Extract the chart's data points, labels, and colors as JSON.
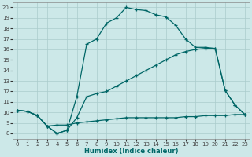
{
  "xlabel": "Humidex (Indice chaleur)",
  "xlim": [
    -0.5,
    23.5
  ],
  "ylim": [
    7.5,
    20.5
  ],
  "xticks": [
    0,
    1,
    2,
    3,
    4,
    5,
    6,
    7,
    8,
    9,
    10,
    11,
    12,
    13,
    14,
    15,
    16,
    17,
    18,
    19,
    20,
    21,
    22,
    23
  ],
  "yticks": [
    8,
    9,
    10,
    11,
    12,
    13,
    14,
    15,
    16,
    17,
    18,
    19,
    20
  ],
  "bg_color": "#cce8e8",
  "grid_color": "#aacccc",
  "line_color": "#006666",
  "line1_x": [
    0,
    1,
    2,
    3,
    4,
    5,
    6,
    7,
    8,
    9,
    10,
    11,
    12,
    13,
    14,
    15,
    16,
    17,
    18,
    19,
    20,
    21,
    22,
    23
  ],
  "line1_y": [
    10.2,
    10.1,
    9.7,
    8.7,
    8.0,
    8.3,
    11.5,
    16.5,
    17.0,
    18.5,
    19.0,
    20.0,
    19.8,
    19.7,
    19.3,
    19.1,
    18.3,
    17.0,
    16.2,
    16.2,
    16.1,
    12.1,
    10.7,
    9.8
  ],
  "line2_x": [
    0,
    1,
    2,
    3,
    4,
    5,
    6,
    7,
    8,
    9,
    10,
    11,
    12,
    13,
    14,
    15,
    16,
    17,
    18,
    19,
    20,
    21,
    22,
    23
  ],
  "line2_y": [
    10.2,
    10.1,
    9.7,
    8.7,
    8.0,
    8.3,
    9.5,
    11.5,
    11.8,
    12.0,
    12.5,
    13.0,
    13.5,
    14.0,
    14.5,
    15.0,
    15.5,
    15.8,
    16.0,
    16.1,
    16.1,
    12.1,
    10.7,
    9.8
  ],
  "line3_x": [
    0,
    1,
    2,
    3,
    4,
    5,
    6,
    7,
    8,
    9,
    10,
    11,
    12,
    13,
    14,
    15,
    16,
    17,
    18,
    19,
    20,
    21,
    22,
    23
  ],
  "line3_y": [
    10.2,
    10.1,
    9.7,
    8.7,
    8.8,
    8.8,
    9.0,
    9.1,
    9.2,
    9.3,
    9.4,
    9.5,
    9.5,
    9.5,
    9.5,
    9.5,
    9.5,
    9.6,
    9.6,
    9.7,
    9.7,
    9.7,
    9.8,
    9.8
  ]
}
